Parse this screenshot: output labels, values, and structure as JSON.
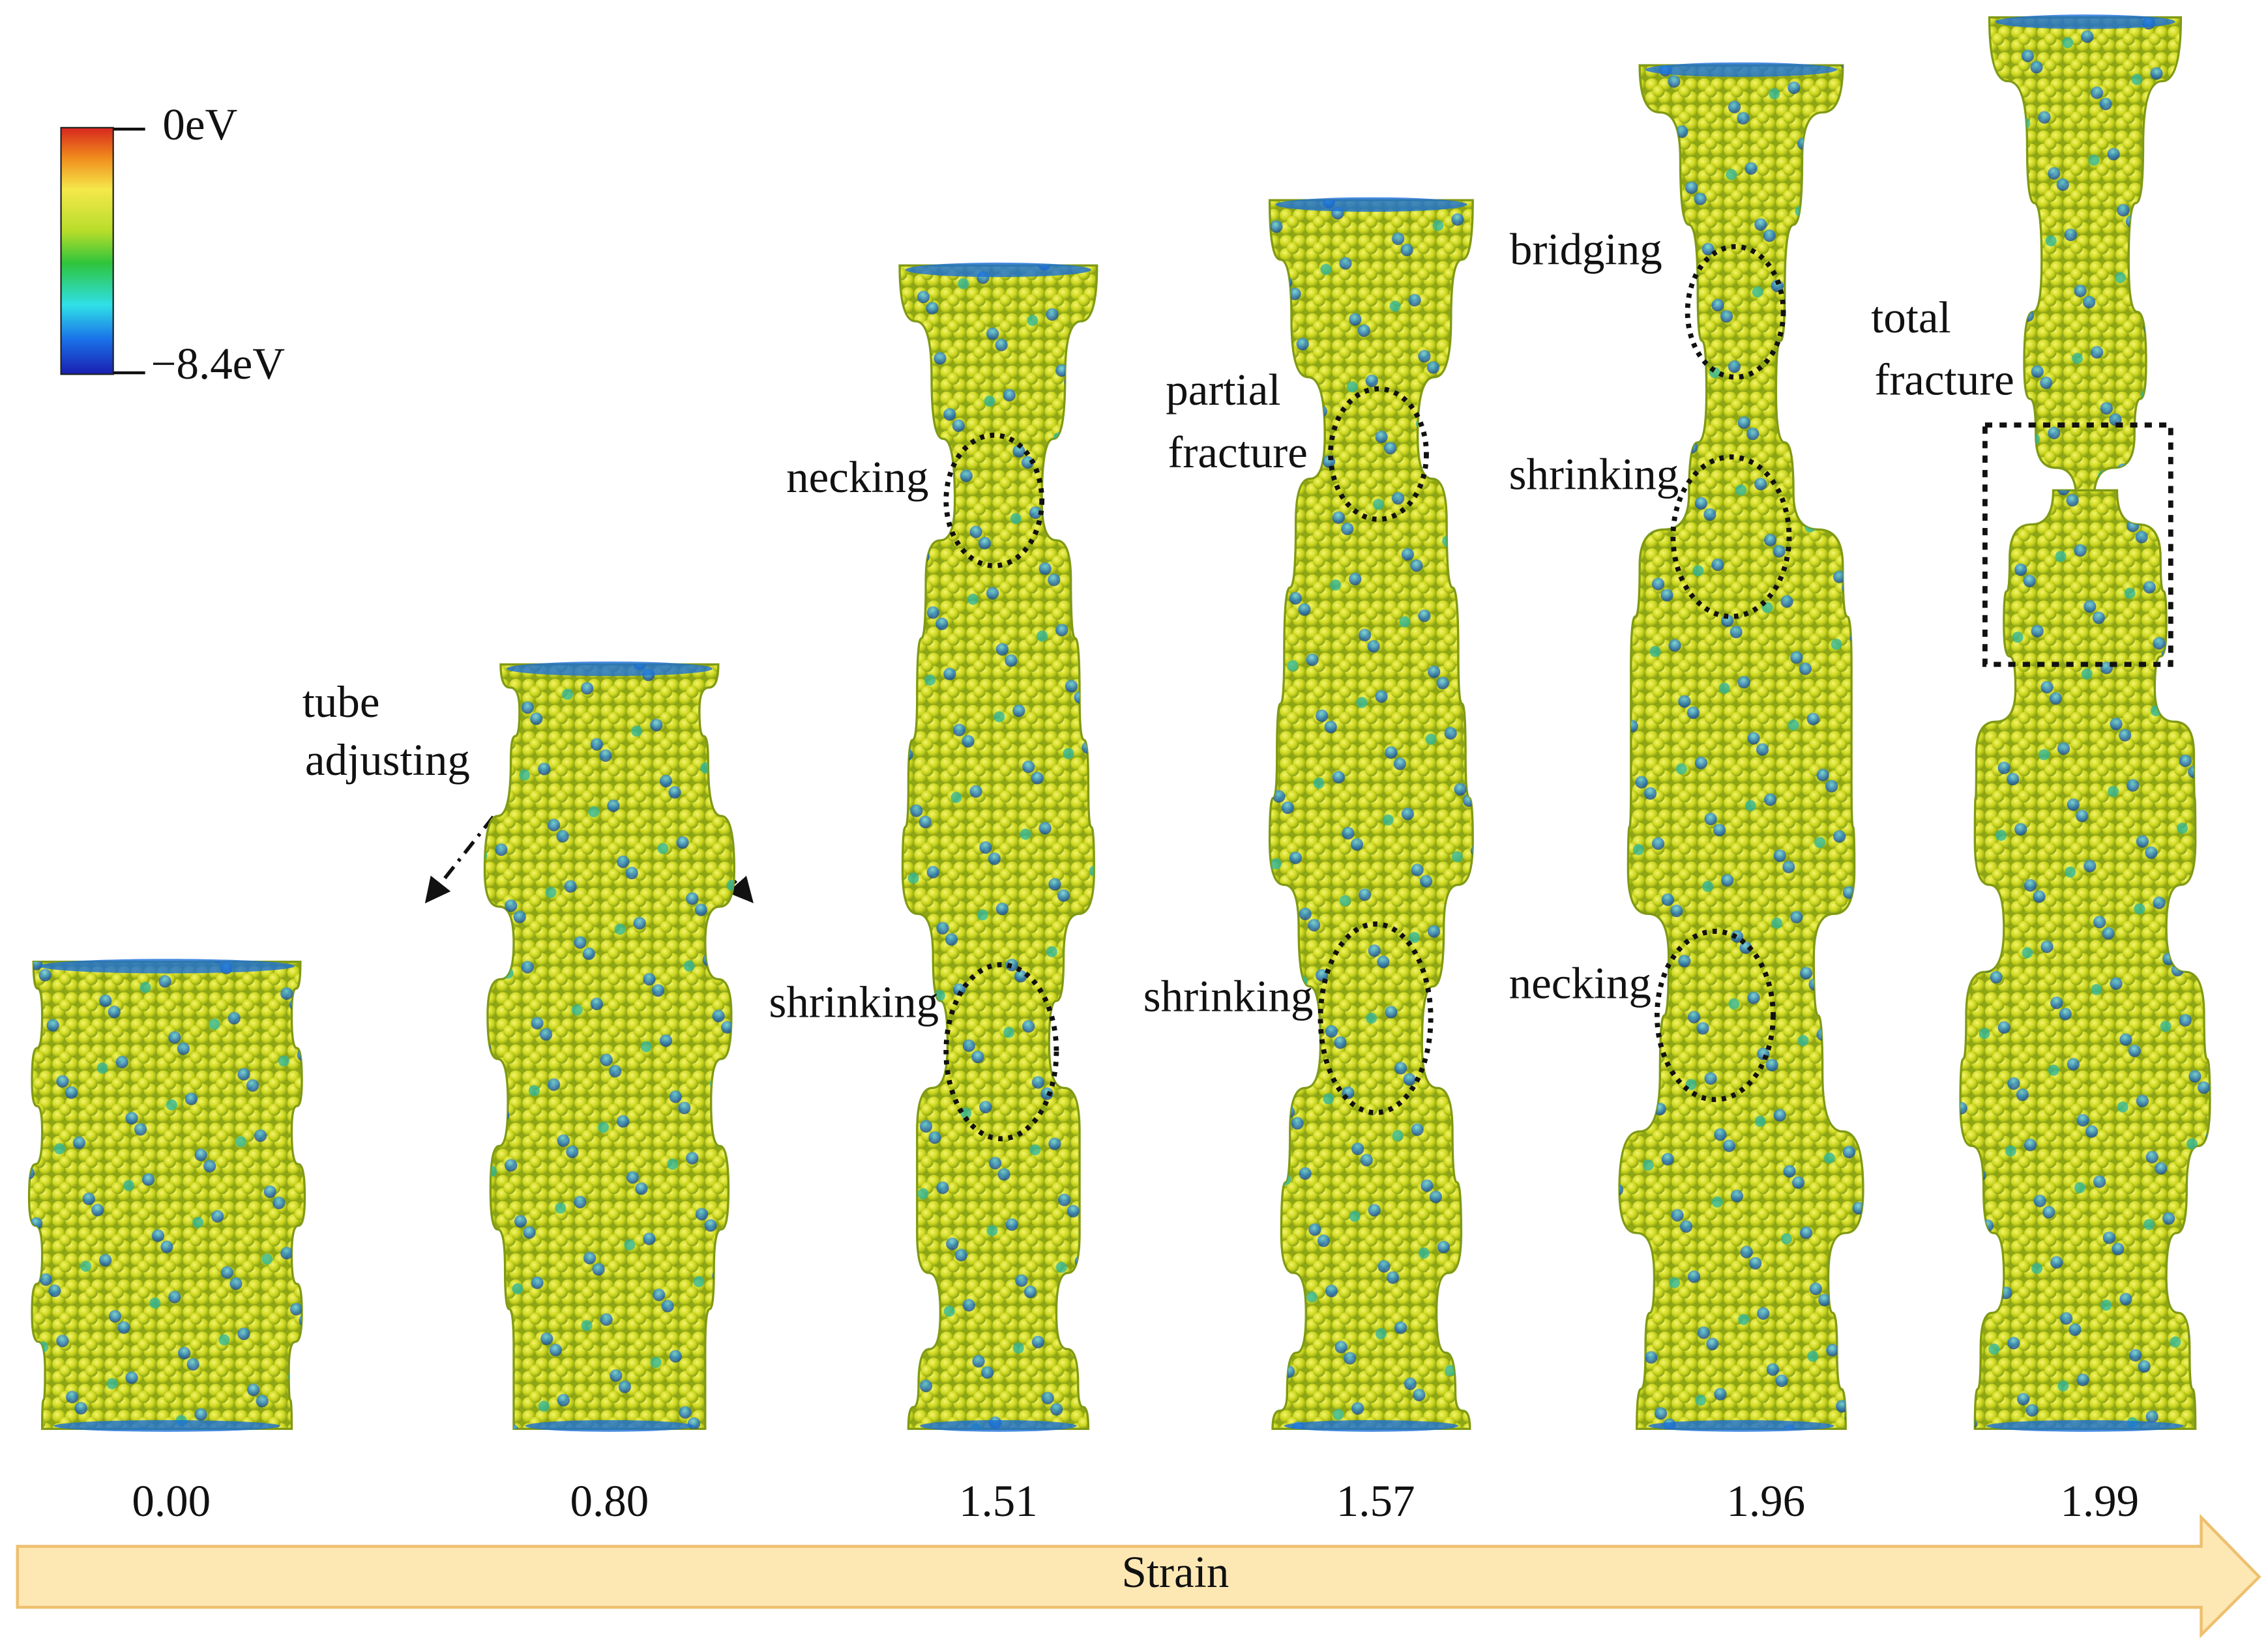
{
  "colorbar": {
    "max_label": "0eV",
    "min_label": "−8.4eV"
  },
  "panels": [
    {
      "strain": "0.00"
    },
    {
      "strain": "0.80"
    },
    {
      "strain": "1.51"
    },
    {
      "strain": "1.57"
    },
    {
      "strain": "1.96"
    },
    {
      "strain": "1.99"
    }
  ],
  "annotations": [
    {
      "lines": [
        "tube",
        "adjusting"
      ]
    },
    {
      "lines": [
        "necking"
      ]
    },
    {
      "lines": [
        "shrinking"
      ]
    },
    {
      "lines": [
        "partial",
        "fracture"
      ]
    },
    {
      "lines": [
        "shrinking"
      ]
    },
    {
      "lines": [
        "bridging"
      ]
    },
    {
      "lines": [
        "shrinking"
      ]
    },
    {
      "lines": [
        "necking"
      ]
    },
    {
      "lines": [
        "total",
        "fracture"
      ]
    }
  ],
  "axis_label": "Strain"
}
